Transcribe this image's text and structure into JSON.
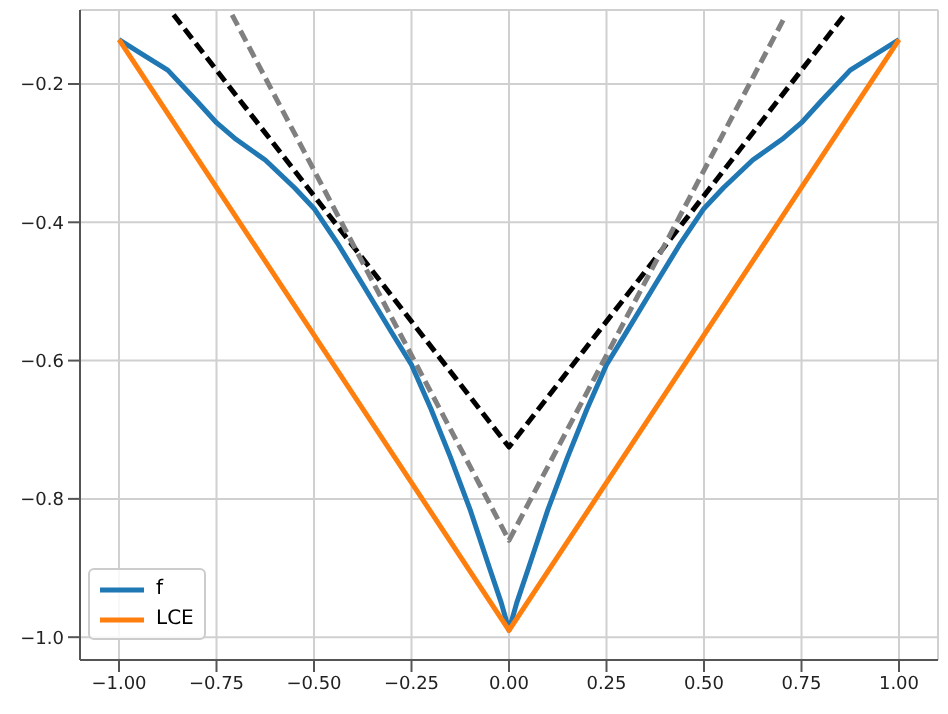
{
  "chart_data": {
    "type": "line",
    "xlim": [
      -1.1,
      1.1
    ],
    "ylim": [
      -1.033,
      -0.093
    ],
    "xticks": [
      {
        "value": -1,
        "label": "−1.00"
      },
      {
        "value": -0.75,
        "label": "−0.75"
      },
      {
        "value": -0.5,
        "label": "−0.50"
      },
      {
        "value": -0.25,
        "label": "−0.25"
      },
      {
        "value": 0,
        "label": "0.00"
      },
      {
        "value": 0.25,
        "label": "0.25"
      },
      {
        "value": 0.5,
        "label": "0.50"
      },
      {
        "value": 0.75,
        "label": "0.75"
      },
      {
        "value": 1,
        "label": "1.00"
      }
    ],
    "yticks": [
      {
        "value": -1,
        "label": "−1.0"
      },
      {
        "value": -0.8,
        "label": "−0.8"
      },
      {
        "value": -0.6,
        "label": "−0.6"
      },
      {
        "value": -0.4,
        "label": "−0.4"
      },
      {
        "value": -0.2,
        "label": "−0.2"
      }
    ],
    "grid": true,
    "legend": "bottom left",
    "marker": "none",
    "series": [
      {
        "name": "f",
        "color": "#1f77b4",
        "line_style": "solid",
        "x": [
          -1,
          -0.94,
          -0.875,
          -0.8,
          -0.75,
          -0.7,
          -0.625,
          -0.55,
          -0.5,
          -0.44,
          -0.375,
          -0.3,
          -0.25,
          -0.2,
          -0.15,
          -0.1,
          -0.05,
          -0.02,
          0,
          0.02,
          0.05,
          0.1,
          0.15,
          0.2,
          0.25,
          0.3,
          0.375,
          0.44,
          0.5,
          0.55,
          0.625,
          0.7,
          0.75,
          0.8,
          0.875,
          0.94,
          1
        ],
        "values": [
          -0.136,
          -0.157,
          -0.18,
          -0.225,
          -0.256,
          -0.28,
          -0.31,
          -0.35,
          -0.38,
          -0.43,
          -0.49,
          -0.56,
          -0.606,
          -0.67,
          -0.74,
          -0.815,
          -0.9,
          -0.95,
          -0.99,
          -0.95,
          -0.9,
          -0.815,
          -0.74,
          -0.67,
          -0.606,
          -0.56,
          -0.49,
          -0.43,
          -0.38,
          -0.35,
          -0.31,
          -0.28,
          -0.256,
          -0.225,
          -0.18,
          -0.157,
          -0.136
        ]
      },
      {
        "name": "LCE",
        "color": "#ff7f0e",
        "line_style": "solid",
        "x": [
          -1,
          0,
          1
        ],
        "values": [
          -0.136,
          -0.99,
          -0.136
        ]
      },
      {
        "color": "#000000",
        "line_style": "dashed",
        "x": [
          -0.86,
          0,
          0.86
        ],
        "values": [
          -0.1,
          -0.725,
          -0.1
        ]
      },
      {
        "color": "#808080",
        "line_style": "dashed",
        "x": [
          -0.71,
          0,
          0.71
        ],
        "values": [
          -0.1,
          -0.86,
          -0.1
        ]
      }
    ]
  }
}
